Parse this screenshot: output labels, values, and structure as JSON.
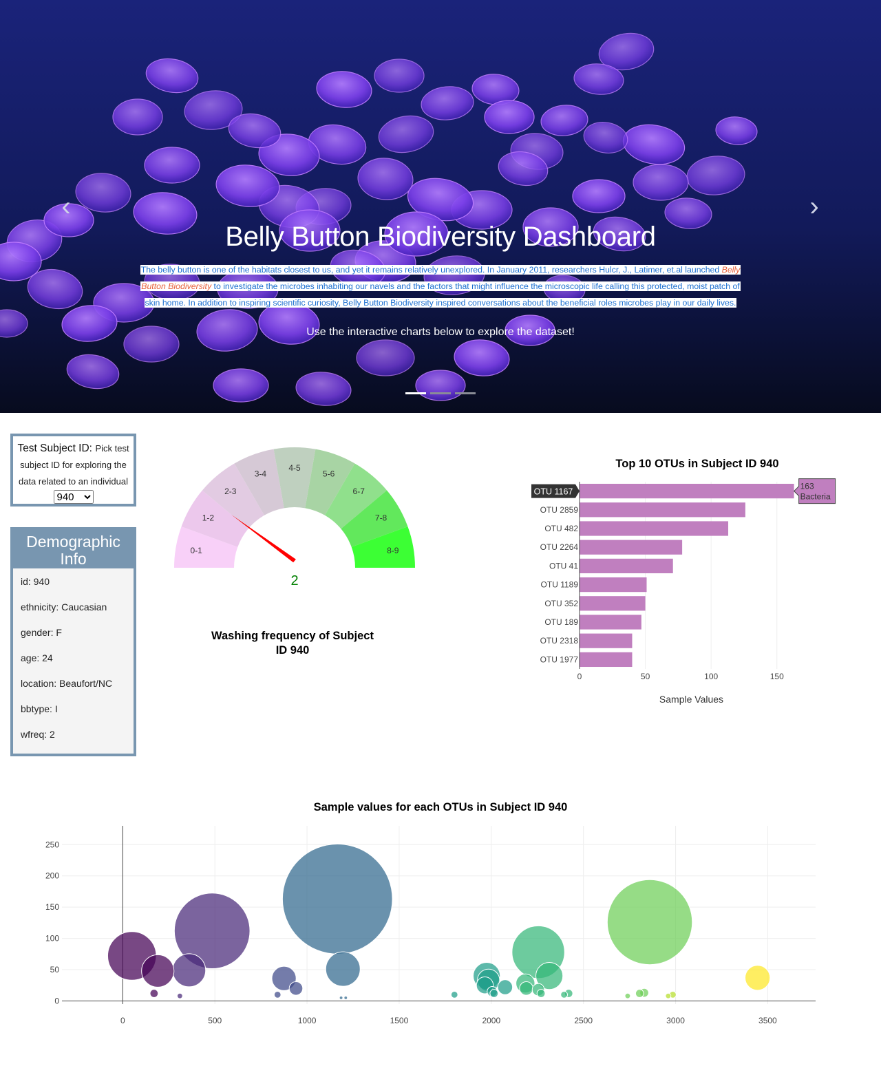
{
  "hero": {
    "title": "Belly Button Biodiversity Dashboard",
    "desc_part1": "The belly button is one of the habitats closest to us, and yet it remains relatively unexplored. In January 2011, researchers Hulcr, J., Latimer, et.al launched ",
    "desc_link": "Belly Button Biodiversity",
    "desc_part2": " to investigate the microbes inhabiting our navels and the factors that might influence the microscopic life calling this protected, moist patch of skin home. In addition to inspiring scientific curiosity, Belly Button Biodiversity inspired conversations about the beneficial roles microbes play in our daily lives.",
    "cta": "Use the interactive charts below to explore the dataset!",
    "prev_icon": "chevron-left-icon",
    "next_icon": "chevron-right-icon"
  },
  "selector": {
    "label_big": "Test Subject ID:",
    "label_small": "Pick test subject ID for exploring the data related to an individual",
    "selected": "940"
  },
  "demographic": {
    "heading": "Demographic Info",
    "rows": [
      "id: 940",
      "ethnicity: Caucasian",
      "gender: F",
      "age: 24",
      "location: Beaufort/NC",
      "bbtype: I",
      "wfreq: 2"
    ]
  },
  "chart_data": [
    {
      "type": "gauge",
      "title": "Washing frequency of Subject ID 940",
      "value": 2,
      "range": [
        0,
        9
      ],
      "steps": [
        "0-1",
        "1-2",
        "2-3",
        "3-4",
        "4-5",
        "5-6",
        "6-7",
        "7-8",
        "8-9"
      ],
      "colors": [
        "#f8d0f8",
        "#ecc8ec",
        "#e2cbe2",
        "#d6c9d6",
        "#bfd0bf",
        "#a8d4a4",
        "#90e08c",
        "#62e85c",
        "#3cff34"
      ],
      "needle_color": "#ff0000",
      "value_color": "#008000"
    },
    {
      "type": "bar",
      "title": "Top 10 OTUs in Subject ID 940",
      "xlabel": "Sample Values",
      "categories": [
        "OTU 1167",
        "OTU 2859",
        "OTU 482",
        "OTU 2264",
        "OTU 41",
        "OTU 1189",
        "OTU 352",
        "OTU 189",
        "OTU 2318",
        "OTU 1977"
      ],
      "values": [
        163,
        126,
        113,
        78,
        71,
        51,
        50,
        47,
        40,
        40
      ],
      "xlim": [
        0,
        170
      ],
      "xticks": [
        0,
        50,
        100,
        150
      ],
      "hover": {
        "category": "OTU 1167",
        "value": "163",
        "text": "Bacteria"
      },
      "bar_color": "#c07fbf"
    },
    {
      "type": "scatter",
      "title": "Sample values for each OTUs in Subject ID 940",
      "xlim": [
        -330,
        3760
      ],
      "ylim": [
        -5,
        280
      ],
      "xticks": [
        0,
        500,
        1000,
        1500,
        2000,
        2500,
        3000,
        3500
      ],
      "yticks": [
        0,
        50,
        100,
        150,
        200,
        250
      ],
      "x": [
        50,
        190,
        360,
        485,
        170,
        310,
        840,
        875,
        940,
        1165,
        1195,
        1185,
        1210,
        1800,
        1975,
        1985,
        1965,
        2005,
        2015,
        2075,
        2185,
        2190,
        2255,
        2270,
        2315,
        2255,
        2395,
        2420,
        2860,
        2740,
        2805,
        2830,
        2960,
        2985,
        3445
      ],
      "y": [
        72,
        48,
        49,
        112,
        12,
        8,
        10,
        36,
        20,
        163,
        51,
        5,
        5,
        10,
        40,
        33,
        25,
        15,
        12,
        22,
        28,
        20,
        78,
        12,
        40,
        18,
        10,
        12,
        126,
        8,
        12,
        13,
        8,
        10,
        37
      ],
      "sizes": [
        72,
        48,
        49,
        112,
        12,
        8,
        10,
        36,
        20,
        163,
        51,
        5,
        5,
        10,
        40,
        33,
        25,
        15,
        12,
        22,
        28,
        20,
        78,
        12,
        40,
        18,
        10,
        12,
        126,
        8,
        12,
        13,
        8,
        10,
        37
      ],
      "colorscale": "viridis"
    }
  ]
}
